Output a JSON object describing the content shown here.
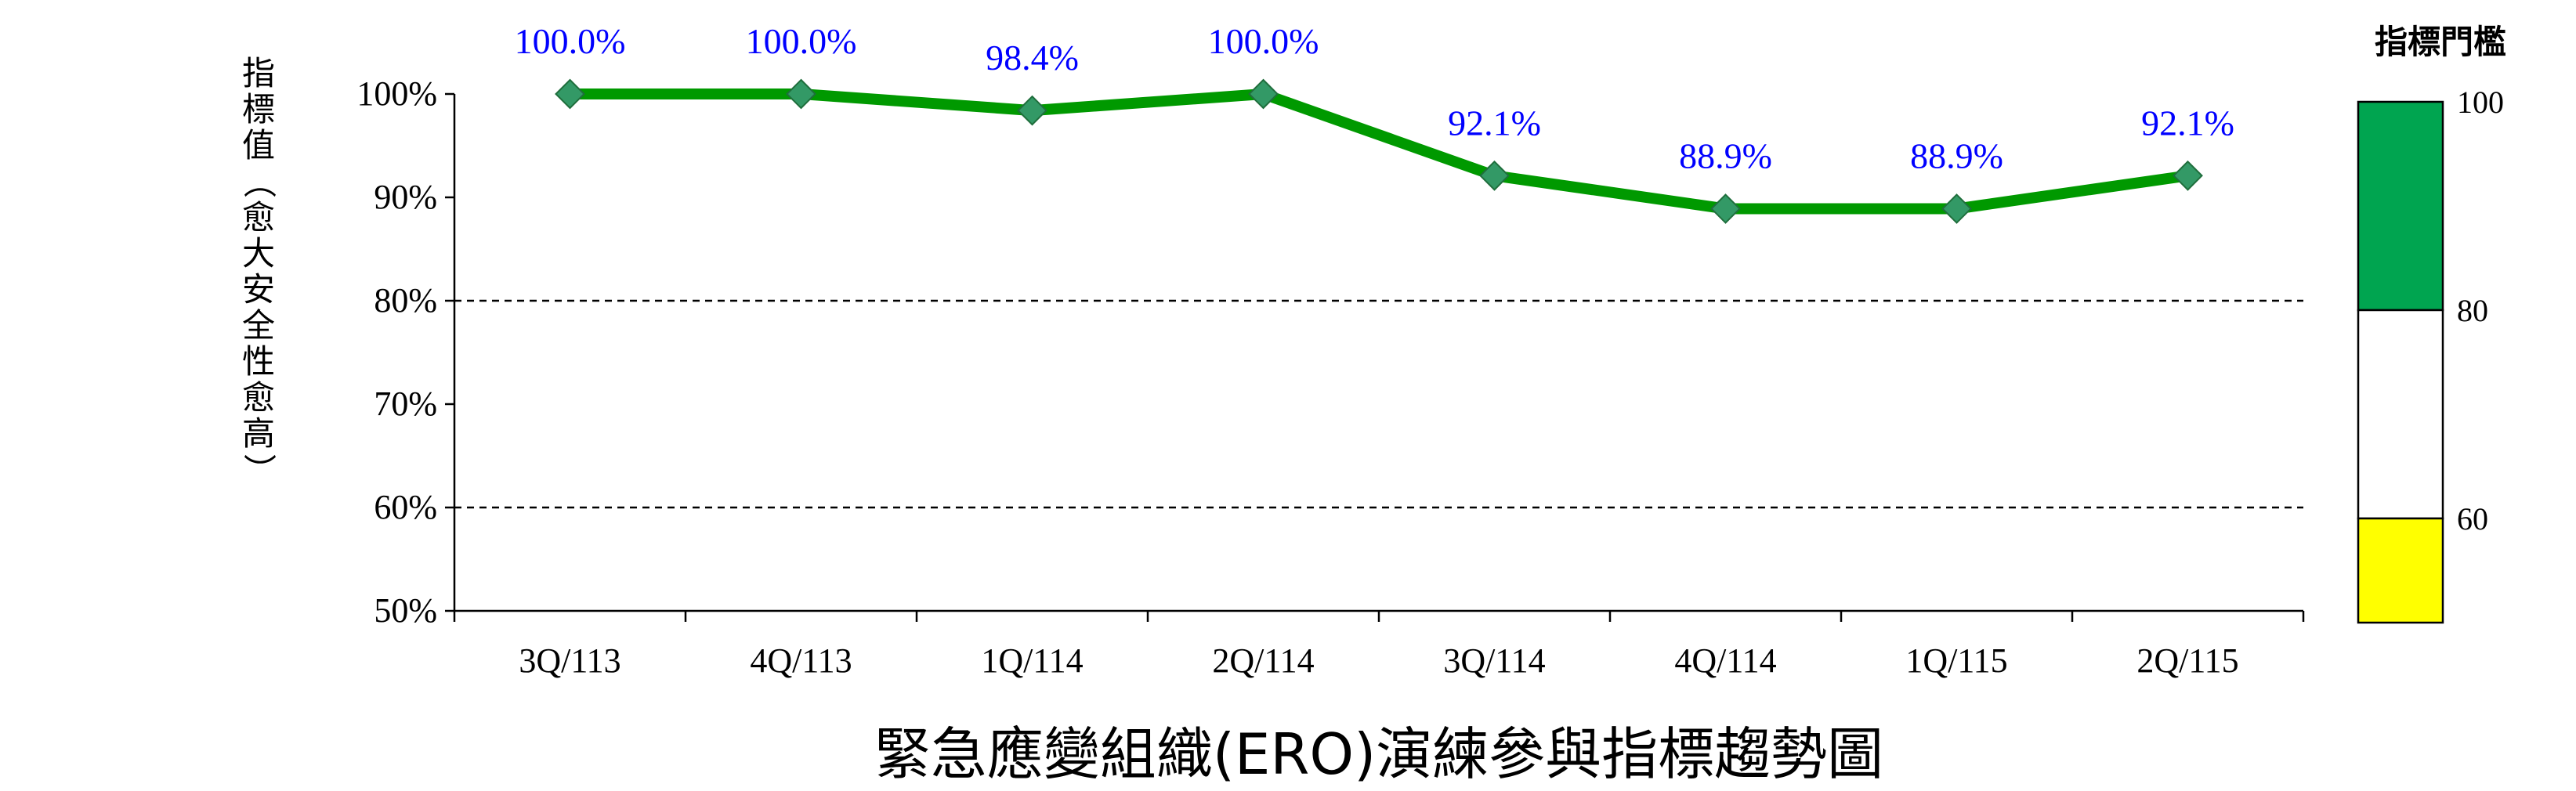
{
  "chart_data": {
    "type": "line",
    "title": "緊急應變組織(ERO)演練參與指標趨勢圖",
    "ylabel": "指標值（愈大安全性愈高）",
    "categories": [
      "3Q/113",
      "4Q/113",
      "1Q/114",
      "2Q/114",
      "3Q/114",
      "4Q/114",
      "1Q/115",
      "2Q/115"
    ],
    "series": [
      {
        "values": [
          100.0,
          100.0,
          98.4,
          100.0,
          92.1,
          88.9,
          88.9,
          92.1
        ],
        "labels": [
          "100.0%",
          "100.0%",
          "98.4%",
          "100.0%",
          "92.1%",
          "88.9%",
          "88.9%",
          "92.1%"
        ],
        "color": "#009900",
        "marker_color": "#339966"
      }
    ],
    "ylim": [
      50,
      100
    ],
    "yticks": [
      "50%",
      "60%",
      "70%",
      "80%",
      "90%",
      "100%"
    ],
    "threshold_lines": [
      60,
      80
    ],
    "data_label_color": "#0000ff",
    "threshold_legend": {
      "title": "指標門檻",
      "ticks": [
        "100",
        "80",
        "60"
      ],
      "bands": [
        {
          "from": 80,
          "to": 100,
          "color": "#00a550"
        },
        {
          "from": 60,
          "to": 80,
          "color": "#ffffff"
        },
        {
          "from": 50,
          "to": 60,
          "color": "#ffff00"
        }
      ]
    }
  }
}
